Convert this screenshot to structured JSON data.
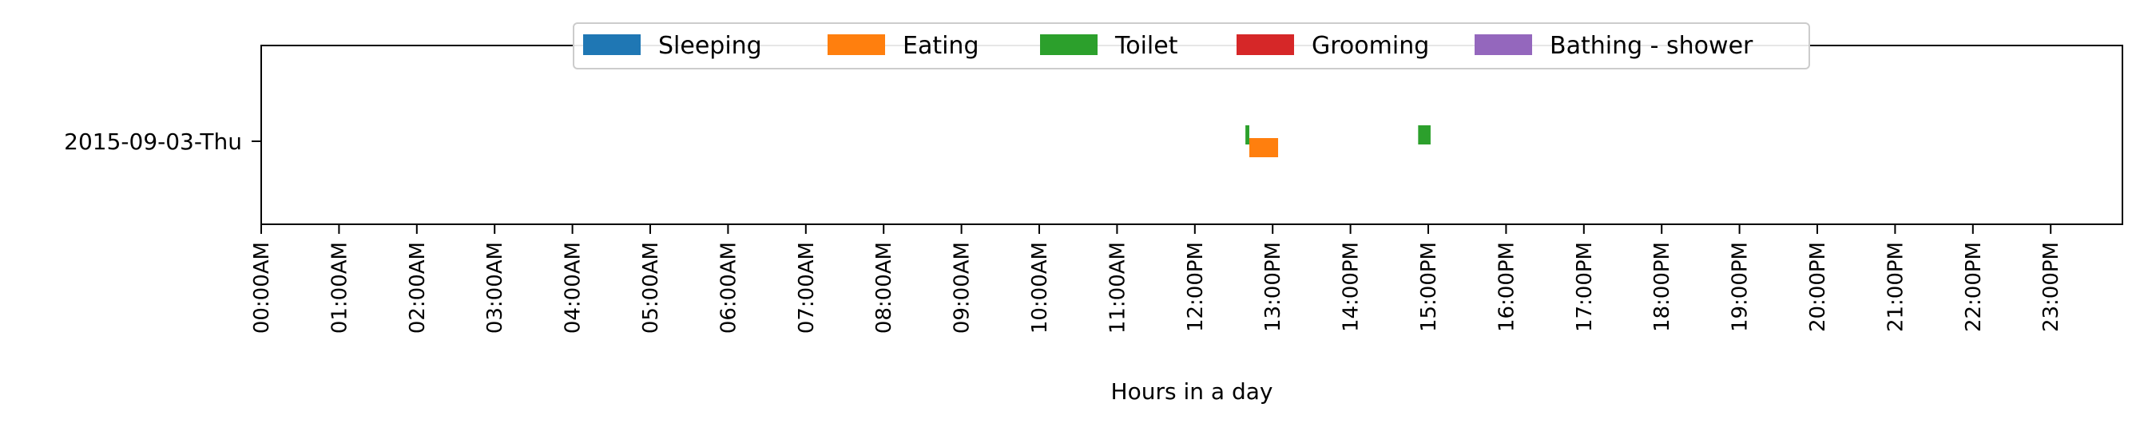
{
  "chart_data": {
    "type": "timeline",
    "title": "",
    "xlabel": "Hours in a day",
    "ylabel": "",
    "xlim": [
      0,
      24
    ],
    "x_ticks": [
      "00:00AM",
      "01:00AM",
      "02:00AM",
      "03:00AM",
      "04:00AM",
      "05:00AM",
      "06:00AM",
      "07:00AM",
      "08:00AM",
      "09:00AM",
      "10:00AM",
      "11:00AM",
      "12:00PM",
      "13:00PM",
      "14:00PM",
      "15:00PM",
      "16:00PM",
      "17:00PM",
      "18:00PM",
      "19:00PM",
      "20:00PM",
      "21:00PM",
      "22:00PM",
      "23:00PM"
    ],
    "days": [
      "2015-09-03-Thu"
    ],
    "legend_position": "top-center",
    "grid": false,
    "series": [
      {
        "name": "Sleeping",
        "color": "#1f77b4",
        "intervals": []
      },
      {
        "name": "Eating",
        "color": "#ff7f0e",
        "intervals": [
          {
            "day": "2015-09-03-Thu",
            "start": 12.7,
            "end": 13.07
          }
        ]
      },
      {
        "name": "Toilet",
        "color": "#2ca02c",
        "intervals": [
          {
            "day": "2015-09-03-Thu",
            "start": 12.65,
            "end": 12.7
          },
          {
            "day": "2015-09-03-Thu",
            "start": 14.87,
            "end": 15.03
          }
        ]
      },
      {
        "name": "Grooming",
        "color": "#d62728",
        "intervals": []
      },
      {
        "name": "Bathing - shower",
        "color": "#9467bd",
        "intervals": []
      }
    ]
  }
}
